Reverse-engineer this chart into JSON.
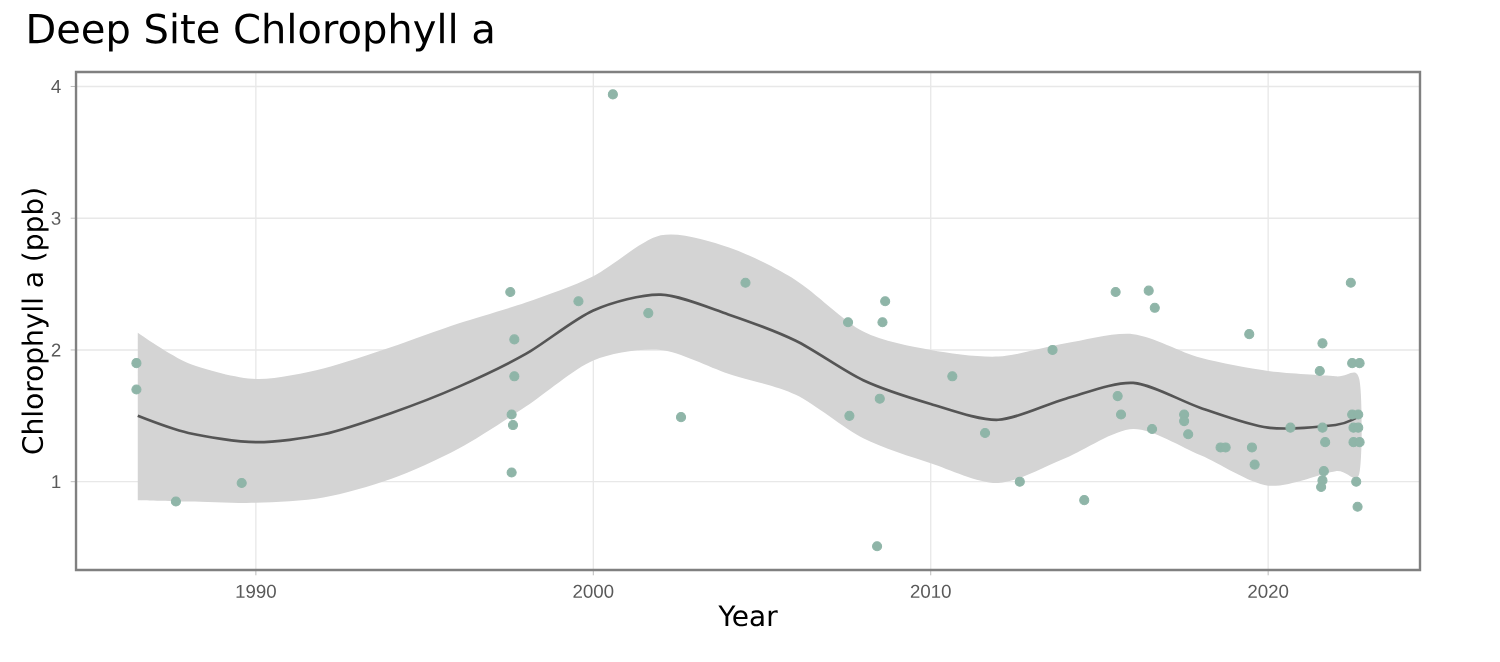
{
  "chart_data": {
    "type": "scatter",
    "title": "Deep Site Chlorophyll a",
    "xlabel": "Year",
    "ylabel": "Chlorophyll a  (ppb)",
    "xlim": [
      1984.67,
      2024.5
    ],
    "ylim": [
      0.33,
      4.11
    ],
    "xticks": [
      1990,
      2000,
      2010,
      2020
    ],
    "yticks": [
      1,
      2,
      3,
      4
    ],
    "grid": true,
    "series": [
      {
        "color": "#8fb5a8",
        "x": [
          1986.46,
          1986.46,
          1987.63,
          1989.58,
          1997.54,
          1997.66,
          1997.66,
          1997.58,
          1997.62,
          1997.58,
          2000.58,
          1999.56,
          2001.63,
          2002.6,
          2004.51,
          2007.55,
          2007.59,
          2008.41,
          2008.49,
          2008.57,
          2008.65,
          2010.64,
          2011.61,
          2012.64,
          2013.61,
          2014.55,
          2015.48,
          2015.54,
          2015.64,
          2016.46,
          2016.64,
          2016.56,
          2017.51,
          2017.51,
          2017.63,
          2018.59,
          2018.74,
          2019.44,
          2019.52,
          2019.6,
          2020.66,
          2021.53,
          2021.61,
          2021.61,
          2021.69,
          2021.65,
          2021.61,
          2021.57,
          2022.45,
          2022.49,
          2022.71,
          2022.49,
          2022.67,
          2022.53,
          2022.67,
          2022.53,
          2022.71,
          2022.61,
          2022.65
        ],
        "values": [
          1.9,
          1.7,
          0.85,
          0.99,
          2.44,
          2.08,
          1.8,
          1.51,
          1.43,
          1.07,
          3.94,
          2.37,
          2.28,
          1.49,
          2.51,
          2.21,
          1.5,
          0.51,
          1.63,
          2.21,
          2.37,
          1.8,
          1.37,
          1.0,
          2.0,
          0.86,
          2.44,
          1.65,
          1.51,
          2.45,
          2.32,
          1.4,
          1.51,
          1.46,
          1.36,
          1.26,
          1.26,
          2.12,
          1.26,
          1.13,
          1.41,
          1.84,
          2.05,
          1.41,
          1.3,
          1.08,
          1.01,
          0.96,
          2.51,
          1.9,
          1.9,
          1.51,
          1.51,
          1.41,
          1.41,
          1.3,
          1.3,
          1.0,
          0.81
        ]
      },
      {
        "type": "line",
        "color": "#555555",
        "x": [
          1986.5,
          1988,
          1990,
          1992,
          1994,
          1996,
          1998,
          2000,
          2002,
          2004,
          2006,
          2008,
          2010,
          2012,
          2014,
          2016,
          2018,
          2020,
          2022,
          2022.7
        ],
        "values": [
          1.5,
          1.37,
          1.3,
          1.36,
          1.52,
          1.72,
          1.97,
          2.3,
          2.42,
          2.27,
          2.07,
          1.77,
          1.59,
          1.47,
          1.63,
          1.75,
          1.56,
          1.41,
          1.43,
          1.5
        ],
        "upper": [
          2.13,
          1.9,
          1.78,
          1.86,
          2.02,
          2.2,
          2.36,
          2.56,
          2.87,
          2.78,
          2.53,
          2.14,
          2.0,
          1.95,
          2.05,
          2.12,
          1.94,
          1.84,
          1.8,
          1.78
        ],
        "lower": [
          0.86,
          0.85,
          0.84,
          0.88,
          1.02,
          1.25,
          1.57,
          1.92,
          2.0,
          1.82,
          1.66,
          1.33,
          1.14,
          0.99,
          1.18,
          1.4,
          1.2,
          0.97,
          1.08,
          1.06
        ]
      }
    ]
  }
}
